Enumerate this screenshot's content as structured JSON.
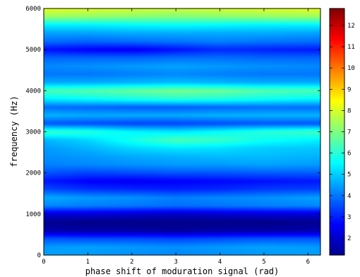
{
  "chart_data": {
    "type": "heatmap",
    "xlabel": "phase shift of moduration signal (rad)",
    "ylabel": "frequency (Hz)",
    "xlim": [
      0,
      6.283
    ],
    "ylim": [
      0,
      6000
    ],
    "x_ticks": [
      "0",
      "1",
      "2",
      "3",
      "4",
      "5",
      "6"
    ],
    "y_ticks": [
      "0",
      "1000",
      "2000",
      "3000",
      "4000",
      "5000",
      "6000"
    ],
    "colorbar": {
      "range": [
        1.2,
        12.8
      ],
      "ticks": [
        "2",
        "3",
        "4",
        "5",
        "6",
        "7",
        "8",
        "9",
        "10",
        "11",
        "12"
      ],
      "colormap": "jet"
    },
    "phase": [
      0,
      1,
      2,
      3,
      4,
      5,
      6.28
    ],
    "frequency": [
      0,
      200,
      400,
      600,
      800,
      1000,
      1200,
      1400,
      1600,
      1800,
      2000,
      2200,
      2400,
      2600,
      2800,
      3000,
      3200,
      3400,
      3600,
      3800,
      4000,
      4200,
      4400,
      4600,
      4800,
      5000,
      5200,
      5400,
      5600,
      5800,
      6000
    ],
    "values": [
      [
        4.5,
        4.4,
        4.3,
        4.2,
        4.3,
        4.4,
        4.5
      ],
      [
        4.4,
        4.5,
        4.4,
        4.3,
        4.4,
        4.5,
        4.4
      ],
      [
        3.6,
        3.5,
        3.5,
        3.4,
        3.5,
        3.6,
        3.6
      ],
      [
        1.7,
        1.6,
        1.6,
        1.5,
        1.6,
        1.6,
        1.7
      ],
      [
        1.4,
        1.3,
        1.3,
        1.3,
        1.3,
        1.3,
        1.4
      ],
      [
        2.2,
        2.2,
        2.1,
        2.0,
        2.1,
        2.2,
        2.2
      ],
      [
        4.2,
        4.1,
        4.0,
        3.9,
        4.0,
        4.1,
        4.2
      ],
      [
        4.6,
        4.4,
        4.3,
        4.1,
        4.2,
        4.3,
        4.5
      ],
      [
        3.5,
        3.2,
        3.1,
        3.0,
        3.1,
        3.3,
        3.4
      ],
      [
        2.9,
        2.6,
        2.5,
        2.6,
        2.7,
        2.8,
        2.9
      ],
      [
        3.6,
        3.4,
        3.5,
        3.6,
        3.6,
        3.7,
        3.7
      ],
      [
        4.1,
        4.2,
        4.3,
        4.4,
        4.4,
        4.5,
        4.4
      ],
      [
        4.3,
        4.4,
        4.6,
        4.7,
        4.8,
        4.8,
        4.7
      ],
      [
        4.4,
        4.7,
        5.1,
        5.3,
        5.2,
        5.0,
        4.9
      ],
      [
        4.7,
        5.1,
        5.8,
        6.4,
        6.2,
        5.7,
        5.4
      ],
      [
        6.2,
        6.0,
        5.5,
        5.3,
        5.6,
        6.0,
        6.3
      ],
      [
        3.6,
        3.5,
        3.4,
        3.4,
        3.5,
        3.6,
        3.6
      ],
      [
        4.7,
        4.6,
        4.6,
        4.6,
        4.7,
        4.7,
        4.7
      ],
      [
        3.9,
        3.8,
        3.7,
        3.7,
        3.8,
        3.9,
        3.9
      ],
      [
        5.4,
        5.6,
        5.8,
        6.0,
        5.9,
        5.7,
        5.5
      ],
      [
        6.4,
        6.5,
        6.7,
        6.9,
        6.8,
        6.5,
        6.4
      ],
      [
        4.6,
        4.6,
        4.7,
        4.8,
        4.7,
        4.6,
        4.6
      ],
      [
        4.0,
        4.0,
        4.1,
        4.2,
        4.1,
        4.0,
        4.0
      ],
      [
        4.2,
        4.3,
        4.4,
        4.5,
        4.4,
        4.3,
        4.2
      ],
      [
        3.8,
        3.8,
        3.8,
        3.9,
        3.9,
        3.8,
        3.8
      ],
      [
        2.8,
        2.6,
        2.5,
        2.8,
        3.1,
        3.0,
        2.9
      ],
      [
        3.9,
        3.8,
        3.9,
        4.0,
        4.1,
        4.0,
        3.9
      ],
      [
        4.5,
        4.5,
        4.6,
        4.6,
        4.6,
        4.6,
        4.5
      ],
      [
        5.4,
        5.4,
        5.5,
        5.6,
        5.5,
        5.4,
        5.4
      ],
      [
        7.3,
        7.2,
        7.1,
        7.0,
        7.1,
        7.2,
        7.3
      ],
      [
        8.2,
        8.1,
        8.0,
        7.9,
        8.0,
        8.1,
        8.2
      ]
    ]
  }
}
